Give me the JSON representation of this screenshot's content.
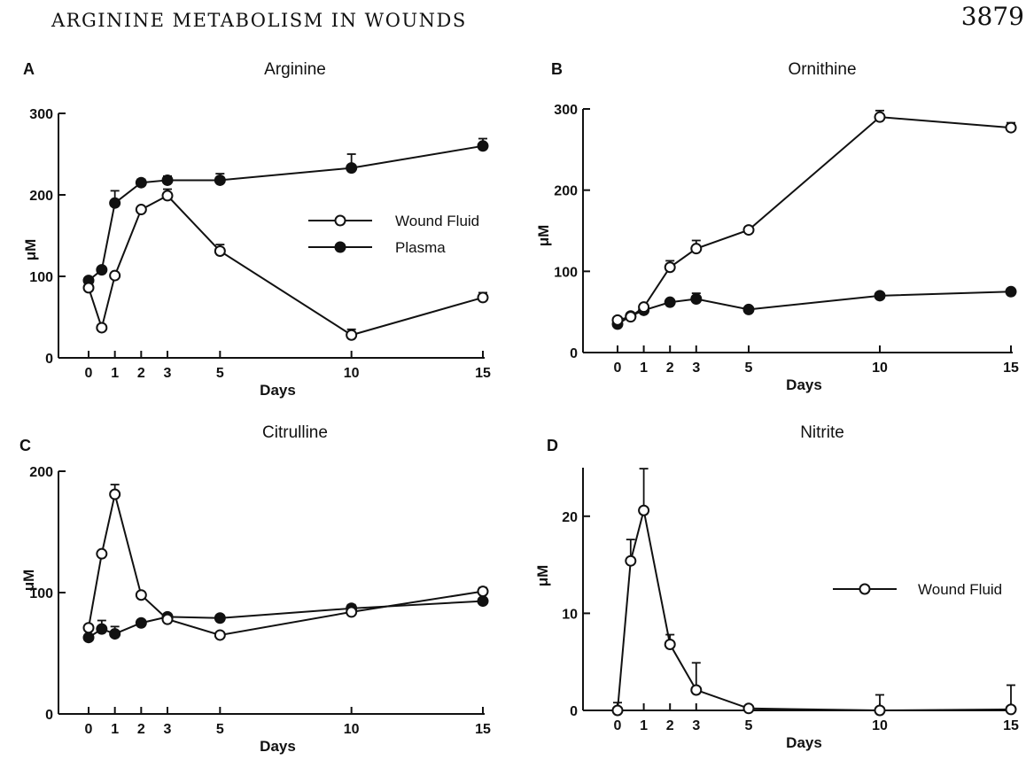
{
  "header": {
    "title": "ARGININE METABOLISM IN WOUNDS",
    "page_number": "3879"
  },
  "colors": {
    "ink": "#111111",
    "open_marker": "#ffffff",
    "filled_marker": "#111111"
  },
  "chart_data": [
    {
      "panel": "A",
      "type": "line",
      "title": "Arginine",
      "xlabel": "Days",
      "ylabel": "μM",
      "xticks": [
        0,
        1,
        2,
        3,
        5,
        10,
        15
      ],
      "yticks": [
        0,
        100,
        200,
        300
      ],
      "xlim": [
        -1,
        15
      ],
      "ylim": [
        0,
        300
      ],
      "legend": {
        "position": "center-right",
        "entries": [
          "Wound Fluid",
          "Plasma"
        ]
      },
      "series": [
        {
          "name": "Wound Fluid",
          "marker": "open",
          "x": [
            0,
            0.5,
            1,
            2,
            3,
            5,
            10,
            15
          ],
          "values": [
            86,
            37,
            101,
            182,
            199,
            131,
            28,
            74
          ],
          "errors": [
            0,
            0,
            0,
            0,
            8,
            8,
            7,
            6
          ]
        },
        {
          "name": "Plasma",
          "marker": "filled",
          "x": [
            0,
            0.5,
            1,
            2,
            3,
            5,
            10,
            15
          ],
          "values": [
            95,
            108,
            190,
            215,
            218,
            218,
            233,
            260
          ],
          "errors": [
            0,
            0,
            15,
            4,
            5,
            8,
            17,
            9
          ]
        }
      ]
    },
    {
      "panel": "B",
      "type": "line",
      "title": "Ornithine",
      "xlabel": "Days",
      "ylabel": "μM",
      "xticks": [
        0,
        1,
        2,
        3,
        5,
        10,
        15
      ],
      "yticks": [
        0,
        100,
        200,
        300
      ],
      "xlim": [
        -1,
        15
      ],
      "ylim": [
        0,
        300
      ],
      "series": [
        {
          "name": "Wound Fluid",
          "marker": "open",
          "x": [
            0,
            0.5,
            1,
            2,
            3,
            5,
            10,
            15
          ],
          "values": [
            40,
            44,
            56,
            105,
            128,
            151,
            290,
            277
          ],
          "errors": [
            0,
            0,
            0,
            8,
            10,
            4,
            8,
            6
          ]
        },
        {
          "name": "Plasma",
          "marker": "filled",
          "x": [
            0,
            0.5,
            1,
            2,
            3,
            5,
            10,
            15
          ],
          "values": [
            35,
            45,
            52,
            62,
            66,
            53,
            70,
            75
          ],
          "errors": [
            0,
            0,
            0,
            0,
            7,
            0,
            0,
            3
          ]
        }
      ]
    },
    {
      "panel": "C",
      "type": "line",
      "title": "Citrulline",
      "xlabel": "Days",
      "ylabel": "μM",
      "xticks": [
        0,
        1,
        2,
        3,
        5,
        10,
        15
      ],
      "yticks": [
        0,
        100,
        200
      ],
      "xlim": [
        -1,
        15
      ],
      "ylim": [
        0,
        200
      ],
      "series": [
        {
          "name": "Wound Fluid",
          "marker": "open",
          "x": [
            0,
            0.5,
            1,
            2,
            3,
            5,
            10,
            15
          ],
          "values": [
            71,
            132,
            181,
            98,
            78,
            65,
            84,
            101
          ],
          "errors": [
            0,
            0,
            8,
            0,
            3,
            0,
            6,
            3
          ]
        },
        {
          "name": "Plasma",
          "marker": "filled",
          "x": [
            0,
            0.5,
            1,
            2,
            3,
            5,
            10,
            15
          ],
          "values": [
            63,
            70,
            66,
            75,
            80,
            79,
            87,
            93
          ],
          "errors": [
            0,
            7,
            6,
            0,
            2,
            0,
            0,
            0
          ]
        }
      ]
    },
    {
      "panel": "D",
      "type": "line",
      "title": "Nitrite",
      "xlabel": "Days",
      "ylabel": "μM",
      "xticks": [
        0,
        1,
        2,
        3,
        5,
        10,
        15
      ],
      "yticks": [
        0,
        10,
        20
      ],
      "xlim": [
        -1,
        15
      ],
      "ylim": [
        0,
        25
      ],
      "legend": {
        "position": "center-right",
        "entries": [
          "Wound Fluid"
        ]
      },
      "series": [
        {
          "name": "Wound Fluid",
          "marker": "open",
          "x": [
            0,
            0.5,
            1,
            2,
            3,
            5,
            10,
            15
          ],
          "values": [
            0,
            15.4,
            20.6,
            6.8,
            2.1,
            0.2,
            0,
            0.1
          ],
          "errors": [
            0.8,
            2.2,
            4.3,
            1,
            2.8,
            0,
            1.6,
            2.5
          ]
        }
      ]
    }
  ]
}
